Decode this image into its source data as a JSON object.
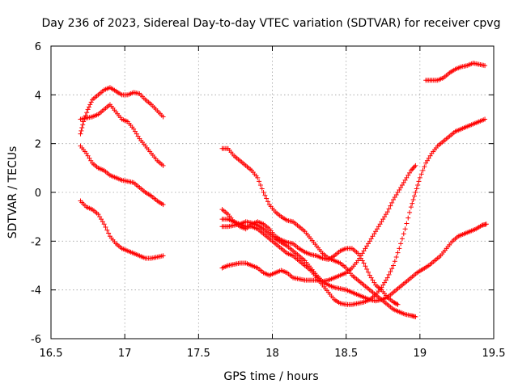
{
  "chart_data": {
    "type": "scatter",
    "title": "Day 236 of 2023, Sidereal Day-to-day VTEC variation (SDTVAR) for receiver cpvg",
    "xlabel": "GPS time / hours",
    "ylabel": "SDTVAR / TECUs",
    "xlim": [
      16.5,
      19.5
    ],
    "ylim": [
      -6,
      6
    ],
    "xticks": [
      16.5,
      17,
      17.5,
      18,
      18.5,
      19,
      19.5
    ],
    "xtick_labels": [
      "16.5",
      "17",
      "17.5",
      "18",
      "18.5",
      "19",
      "19.5"
    ],
    "yticks": [
      -6,
      -4,
      -2,
      0,
      2,
      4,
      6
    ],
    "ytick_labels": [
      "-6",
      "-4",
      "-2",
      "0",
      "2",
      "4",
      "6"
    ],
    "grid": true,
    "marker": "+",
    "color": "#ff0000",
    "series": [
      {
        "name": "arc-a1",
        "points": [
          [
            16.7,
            2.4
          ],
          [
            16.72,
            2.9
          ],
          [
            16.75,
            3.4
          ],
          [
            16.78,
            3.8
          ],
          [
            16.82,
            4.0
          ],
          [
            16.86,
            4.2
          ],
          [
            16.9,
            4.3
          ],
          [
            16.94,
            4.15
          ],
          [
            16.98,
            4.0
          ],
          [
            17.02,
            4.0
          ],
          [
            17.06,
            4.1
          ],
          [
            17.1,
            4.05
          ],
          [
            17.14,
            3.8
          ],
          [
            17.18,
            3.6
          ],
          [
            17.22,
            3.35
          ],
          [
            17.26,
            3.1
          ]
        ]
      },
      {
        "name": "arc-a2",
        "points": [
          [
            16.7,
            3.0
          ],
          [
            16.74,
            3.05
          ],
          [
            16.78,
            3.1
          ],
          [
            16.82,
            3.2
          ],
          [
            16.86,
            3.4
          ],
          [
            16.9,
            3.6
          ],
          [
            16.94,
            3.3
          ],
          [
            16.98,
            3.0
          ],
          [
            17.02,
            2.9
          ],
          [
            17.06,
            2.6
          ],
          [
            17.1,
            2.2
          ],
          [
            17.14,
            1.9
          ],
          [
            17.18,
            1.6
          ],
          [
            17.22,
            1.3
          ],
          [
            17.26,
            1.1
          ]
        ]
      },
      {
        "name": "arc-a3",
        "points": [
          [
            16.7,
            1.9
          ],
          [
            16.74,
            1.6
          ],
          [
            16.78,
            1.2
          ],
          [
            16.82,
            1.0
          ],
          [
            16.86,
            0.9
          ],
          [
            16.9,
            0.7
          ],
          [
            16.94,
            0.6
          ],
          [
            16.98,
            0.5
          ],
          [
            17.02,
            0.45
          ],
          [
            17.06,
            0.4
          ],
          [
            17.1,
            0.2
          ],
          [
            17.14,
            0.0
          ],
          [
            17.18,
            -0.15
          ],
          [
            17.22,
            -0.35
          ],
          [
            17.26,
            -0.5
          ]
        ]
      },
      {
        "name": "arc-a4",
        "points": [
          [
            16.7,
            -0.35
          ],
          [
            16.74,
            -0.6
          ],
          [
            16.78,
            -0.7
          ],
          [
            16.82,
            -0.9
          ],
          [
            16.86,
            -1.3
          ],
          [
            16.9,
            -1.8
          ],
          [
            16.94,
            -2.1
          ],
          [
            16.98,
            -2.3
          ],
          [
            17.02,
            -2.4
          ],
          [
            17.06,
            -2.5
          ],
          [
            17.1,
            -2.6
          ],
          [
            17.14,
            -2.7
          ],
          [
            17.18,
            -2.7
          ],
          [
            17.22,
            -2.65
          ],
          [
            17.26,
            -2.6
          ]
        ]
      },
      {
        "name": "arc-b1",
        "points": [
          [
            17.66,
            1.8
          ],
          [
            17.7,
            1.8
          ],
          [
            17.74,
            1.5
          ],
          [
            17.78,
            1.3
          ],
          [
            17.82,
            1.1
          ],
          [
            17.86,
            0.9
          ],
          [
            17.9,
            0.6
          ],
          [
            17.94,
            0.0
          ],
          [
            17.98,
            -0.5
          ],
          [
            18.02,
            -0.8
          ],
          [
            18.06,
            -1.0
          ],
          [
            18.1,
            -1.15
          ],
          [
            18.14,
            -1.2
          ],
          [
            18.18,
            -1.4
          ],
          [
            18.22,
            -1.6
          ],
          [
            18.26,
            -1.9
          ],
          [
            18.3,
            -2.2
          ],
          [
            18.34,
            -2.5
          ],
          [
            18.38,
            -2.7
          ],
          [
            18.42,
            -2.8
          ],
          [
            18.46,
            -2.9
          ],
          [
            18.5,
            -3.1
          ],
          [
            18.54,
            -3.4
          ],
          [
            18.58,
            -3.6
          ],
          [
            18.62,
            -3.8
          ],
          [
            18.66,
            -4.0
          ],
          [
            18.7,
            -4.2
          ],
          [
            18.74,
            -4.4
          ],
          [
            18.78,
            -4.6
          ],
          [
            18.82,
            -4.8
          ],
          [
            18.86,
            -4.9
          ],
          [
            18.9,
            -5.0
          ],
          [
            18.94,
            -5.05
          ],
          [
            18.97,
            -5.1
          ]
        ]
      },
      {
        "name": "arc-b2",
        "points": [
          [
            17.66,
            -0.7
          ],
          [
            17.7,
            -0.9
          ],
          [
            17.74,
            -1.2
          ],
          [
            17.78,
            -1.4
          ],
          [
            17.82,
            -1.5
          ],
          [
            17.86,
            -1.3
          ],
          [
            17.9,
            -1.2
          ],
          [
            17.94,
            -1.3
          ],
          [
            17.98,
            -1.5
          ],
          [
            18.02,
            -1.8
          ],
          [
            18.06,
            -1.95
          ],
          [
            18.1,
            -2.05
          ],
          [
            18.14,
            -2.1
          ],
          [
            18.18,
            -2.3
          ],
          [
            18.22,
            -2.45
          ],
          [
            18.26,
            -2.55
          ],
          [
            18.3,
            -2.6
          ],
          [
            18.34,
            -2.7
          ],
          [
            18.38,
            -2.75
          ],
          [
            18.42,
            -2.6
          ],
          [
            18.46,
            -2.4
          ],
          [
            18.5,
            -2.3
          ],
          [
            18.54,
            -2.3
          ],
          [
            18.58,
            -2.5
          ],
          [
            18.62,
            -2.9
          ],
          [
            18.66,
            -3.4
          ],
          [
            18.7,
            -3.8
          ],
          [
            18.74,
            -4.0
          ],
          [
            18.78,
            -4.3
          ],
          [
            18.82,
            -4.5
          ],
          [
            18.85,
            -4.6
          ]
        ]
      },
      {
        "name": "arc-b3",
        "points": [
          [
            17.66,
            -1.1
          ],
          [
            17.7,
            -1.1
          ],
          [
            17.74,
            -1.2
          ],
          [
            17.78,
            -1.3
          ],
          [
            17.82,
            -1.4
          ],
          [
            17.86,
            -1.4
          ],
          [
            17.9,
            -1.5
          ],
          [
            17.94,
            -1.7
          ],
          [
            17.98,
            -1.9
          ],
          [
            18.02,
            -2.1
          ],
          [
            18.06,
            -2.3
          ],
          [
            18.1,
            -2.5
          ],
          [
            18.14,
            -2.6
          ],
          [
            18.18,
            -2.8
          ],
          [
            18.22,
            -3.0
          ],
          [
            18.26,
            -3.2
          ],
          [
            18.3,
            -3.5
          ],
          [
            18.34,
            -3.8
          ],
          [
            18.38,
            -4.1
          ],
          [
            18.42,
            -4.4
          ],
          [
            18.46,
            -4.55
          ],
          [
            18.5,
            -4.6
          ],
          [
            18.54,
            -4.6
          ],
          [
            18.58,
            -4.55
          ],
          [
            18.62,
            -4.5
          ],
          [
            18.66,
            -4.4
          ],
          [
            18.7,
            -4.2
          ],
          [
            18.74,
            -3.9
          ],
          [
            18.78,
            -3.5
          ],
          [
            18.82,
            -3.0
          ],
          [
            18.86,
            -2.3
          ],
          [
            18.9,
            -1.5
          ],
          [
            18.94,
            -0.6
          ],
          [
            18.97,
            0.0
          ],
          [
            19.0,
            0.6
          ],
          [
            19.04,
            1.2
          ],
          [
            19.08,
            1.6
          ],
          [
            19.12,
            1.9
          ],
          [
            19.16,
            2.1
          ],
          [
            19.2,
            2.3
          ],
          [
            19.24,
            2.5
          ],
          [
            19.28,
            2.6
          ],
          [
            19.32,
            2.7
          ],
          [
            19.36,
            2.8
          ],
          [
            19.4,
            2.9
          ],
          [
            19.44,
            3.0
          ]
        ]
      },
      {
        "name": "arc-b4",
        "points": [
          [
            17.66,
            -3.1
          ],
          [
            17.7,
            -3.0
          ],
          [
            17.74,
            -2.95
          ],
          [
            17.78,
            -2.9
          ],
          [
            17.82,
            -2.9
          ],
          [
            17.86,
            -3.0
          ],
          [
            17.9,
            -3.1
          ],
          [
            17.94,
            -3.3
          ],
          [
            17.98,
            -3.4
          ],
          [
            18.02,
            -3.3
          ],
          [
            18.06,
            -3.2
          ],
          [
            18.1,
            -3.3
          ],
          [
            18.14,
            -3.5
          ],
          [
            18.18,
            -3.55
          ],
          [
            18.22,
            -3.6
          ],
          [
            18.26,
            -3.6
          ],
          [
            18.3,
            -3.6
          ],
          [
            18.34,
            -3.65
          ],
          [
            18.38,
            -3.6
          ],
          [
            18.42,
            -3.5
          ],
          [
            18.46,
            -3.4
          ],
          [
            18.5,
            -3.3
          ],
          [
            18.54,
            -3.1
          ],
          [
            18.58,
            -2.8
          ],
          [
            18.62,
            -2.4
          ],
          [
            18.66,
            -2.0
          ],
          [
            18.7,
            -1.6
          ],
          [
            18.74,
            -1.2
          ],
          [
            18.78,
            -0.8
          ],
          [
            18.82,
            -0.3
          ],
          [
            18.86,
            0.1
          ],
          [
            18.9,
            0.5
          ],
          [
            18.94,
            0.9
          ],
          [
            18.97,
            1.1
          ]
        ]
      },
      {
        "name": "arc-b5",
        "points": [
          [
            17.66,
            -1.4
          ],
          [
            17.7,
            -1.4
          ],
          [
            17.74,
            -1.35
          ],
          [
            17.78,
            -1.3
          ],
          [
            17.82,
            -1.2
          ],
          [
            17.86,
            -1.25
          ],
          [
            17.9,
            -1.35
          ],
          [
            17.94,
            -1.5
          ],
          [
            17.98,
            -1.7
          ],
          [
            18.02,
            -1.9
          ],
          [
            18.06,
            -2.05
          ],
          [
            18.1,
            -2.2
          ],
          [
            18.14,
            -2.4
          ],
          [
            18.18,
            -2.6
          ],
          [
            18.22,
            -2.8
          ],
          [
            18.26,
            -3.1
          ],
          [
            18.3,
            -3.4
          ],
          [
            18.34,
            -3.65
          ],
          [
            18.38,
            -3.8
          ],
          [
            18.42,
            -3.9
          ],
          [
            18.46,
            -3.95
          ],
          [
            18.5,
            -4.0
          ],
          [
            18.54,
            -4.1
          ],
          [
            18.58,
            -4.2
          ],
          [
            18.62,
            -4.3
          ],
          [
            18.66,
            -4.4
          ],
          [
            18.7,
            -4.45
          ],
          [
            18.74,
            -4.4
          ],
          [
            18.78,
            -4.3
          ],
          [
            18.82,
            -4.1
          ],
          [
            18.86,
            -3.9
          ],
          [
            18.9,
            -3.7
          ],
          [
            18.94,
            -3.5
          ],
          [
            18.98,
            -3.3
          ],
          [
            19.02,
            -3.15
          ],
          [
            19.06,
            -3.0
          ],
          [
            19.1,
            -2.8
          ],
          [
            19.14,
            -2.6
          ],
          [
            19.18,
            -2.3
          ],
          [
            19.22,
            -2.0
          ],
          [
            19.26,
            -1.8
          ],
          [
            19.3,
            -1.7
          ],
          [
            19.34,
            -1.6
          ],
          [
            19.38,
            -1.5
          ],
          [
            19.42,
            -1.35
          ],
          [
            19.45,
            -1.3
          ]
        ]
      },
      {
        "name": "arc-c1",
        "points": [
          [
            19.04,
            4.6
          ],
          [
            19.08,
            4.6
          ],
          [
            19.12,
            4.6
          ],
          [
            19.16,
            4.7
          ],
          [
            19.2,
            4.9
          ],
          [
            19.24,
            5.05
          ],
          [
            19.28,
            5.15
          ],
          [
            19.32,
            5.2
          ],
          [
            19.36,
            5.3
          ],
          [
            19.4,
            5.25
          ],
          [
            19.44,
            5.2
          ]
        ]
      }
    ]
  }
}
